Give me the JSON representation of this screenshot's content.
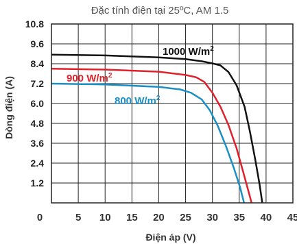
{
  "chart_data": {
    "type": "line",
    "title": "Đặc tính điện tại 25ºC, AM 1.5",
    "xlabel": "Điện áp (V)",
    "ylabel": "Dòng điện (A)",
    "xlim": [
      0,
      45
    ],
    "ylim": [
      0,
      10.8
    ],
    "x_ticks": [
      "0",
      "5",
      "10",
      "15",
      "20",
      "25",
      "30",
      "35",
      "40",
      "45"
    ],
    "y_ticks": [
      "1.2",
      "2.4",
      "3.6",
      "4.8",
      "6.0",
      "7.2",
      "8.4",
      "9.6",
      "10.8"
    ],
    "grid": true,
    "series": [
      {
        "name": "1000 W/m²",
        "name_base": "1000 W/m",
        "name_sup": "2",
        "color": "#111111",
        "points": [
          [
            0,
            8.95
          ],
          [
            10,
            8.9
          ],
          [
            20,
            8.78
          ],
          [
            25,
            8.68
          ],
          [
            28,
            8.55
          ],
          [
            30,
            8.42
          ],
          [
            31.5,
            8.3
          ],
          [
            33,
            7.9
          ],
          [
            34.5,
            7.1
          ],
          [
            36,
            5.8
          ],
          [
            37,
            4.3
          ],
          [
            38,
            2.6
          ],
          [
            38.8,
            1.1
          ],
          [
            39.3,
            0
          ]
        ]
      },
      {
        "name": "900 W/m²",
        "name_base": "900 W/m",
        "name_sup": "2",
        "color": "#e0202a",
        "points": [
          [
            0,
            8.1
          ],
          [
            10,
            8.05
          ],
          [
            20,
            7.92
          ],
          [
            25,
            7.72
          ],
          [
            27,
            7.58
          ],
          [
            28.5,
            7.3
          ],
          [
            30,
            6.65
          ],
          [
            31.5,
            5.8
          ],
          [
            33,
            4.7
          ],
          [
            34.5,
            3.3
          ],
          [
            35.8,
            1.8
          ],
          [
            36.8,
            0.6
          ],
          [
            37.3,
            0
          ]
        ]
      },
      {
        "name": "800 W/m²",
        "name_base": "800 W/m",
        "name_sup": "2",
        "color": "#1a8fc4",
        "points": [
          [
            0,
            7.2
          ],
          [
            10,
            7.15
          ],
          [
            20,
            7.0
          ],
          [
            24,
            6.85
          ],
          [
            26,
            6.65
          ],
          [
            28,
            6.25
          ],
          [
            29.5,
            5.6
          ],
          [
            31,
            4.65
          ],
          [
            32.5,
            3.45
          ],
          [
            34,
            2.1
          ],
          [
            35.2,
            0.9
          ],
          [
            35.9,
            0
          ]
        ]
      }
    ]
  }
}
